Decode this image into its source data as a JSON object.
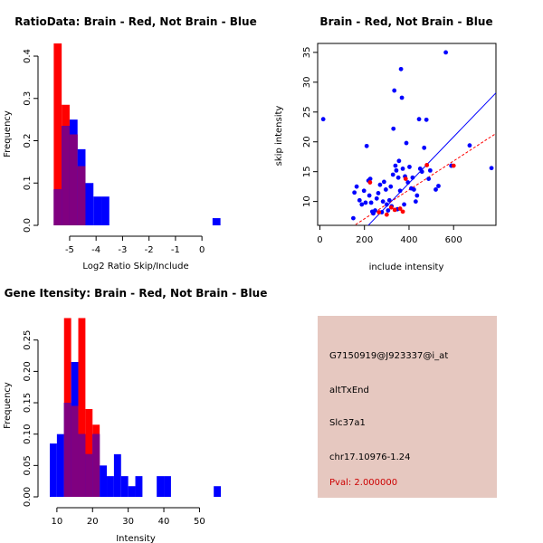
{
  "colors": {
    "red": "#ff0000",
    "blue": "#0000ff",
    "overlap": "#800080",
    "info_bg": "#e6c8c0",
    "pval": "#cc0000"
  },
  "chart_data": [
    {
      "id": "ratio",
      "type": "bar",
      "title": "RatioData: Brain - Red, Not Brain - Blue",
      "xlabel": "Log2 Ratio Skip/Include",
      "ylabel": "Frequency",
      "xlim": [
        -5.75,
        0.85
      ],
      "ylim": [
        0,
        0.43
      ],
      "xticks": [
        -5,
        -4,
        -3,
        -2,
        -1,
        0
      ],
      "xtick_labels": [
        "-5",
        "-4",
        "-3",
        "-2",
        "-1",
        "0"
      ],
      "yticks": [
        0.0,
        0.1,
        0.2,
        0.3,
        0.4
      ],
      "ytick_labels": [
        "0.0",
        "0.1",
        "0.2",
        "0.3",
        "0.4"
      ],
      "bin_edges": [
        -5.6,
        -5.3,
        -5.0,
        -4.7,
        -4.4,
        -4.1,
        -3.8,
        -3.5,
        0.4,
        0.7
      ],
      "series": [
        {
          "name": "Brain",
          "color": "red",
          "values": [
            0.43,
            0.285,
            0.215,
            0.14,
            0,
            0,
            0,
            0,
            0
          ]
        },
        {
          "name": "Not Brain",
          "color": "blue",
          "values": [
            0.085,
            0.235,
            0.25,
            0.18,
            0.1,
            0.068,
            0.068,
            0,
            0.017
          ]
        }
      ]
    },
    {
      "id": "scatter",
      "type": "scatter",
      "title": "Brain - Red, Not Brain - Blue",
      "xlabel": "include intensity",
      "ylabel": "skip intensity",
      "xlim": [
        -10,
        790
      ],
      "ylim": [
        6,
        36.5
      ],
      "xticks": [
        0,
        200,
        400,
        600
      ],
      "xtick_labels": [
        "0",
        "200",
        "400",
        "600"
      ],
      "yticks": [
        10,
        15,
        20,
        25,
        30,
        35
      ],
      "ytick_labels": [
        "10",
        "15",
        "20",
        "25",
        "30",
        "35"
      ],
      "series": [
        {
          "name": "Not Brain",
          "color": "blue",
          "points": [
            [
              15,
              23.8
            ],
            [
              150,
              7.2
            ],
            [
              155,
              11.5
            ],
            [
              165,
              12.5
            ],
            [
              178,
              10.2
            ],
            [
              188,
              9.5
            ],
            [
              198,
              11.8
            ],
            [
              205,
              9.8
            ],
            [
              210,
              19.3
            ],
            [
              218,
              13.5
            ],
            [
              222,
              11
            ],
            [
              226,
              13.8
            ],
            [
              230,
              9.8
            ],
            [
              235,
              8.3
            ],
            [
              240,
              8
            ],
            [
              248,
              8.5
            ],
            [
              255,
              10.5
            ],
            [
              262,
              11.4
            ],
            [
              270,
              12.8
            ],
            [
              278,
              8.2
            ],
            [
              283,
              10
            ],
            [
              288,
              13.3
            ],
            [
              296,
              12
            ],
            [
              300,
              9.5
            ],
            [
              306,
              8.5
            ],
            [
              312,
              10.2
            ],
            [
              318,
              12.5
            ],
            [
              322,
              9.2
            ],
            [
              328,
              14.5
            ],
            [
              330,
              22.2
            ],
            [
              334,
              28.6
            ],
            [
              339,
              16
            ],
            [
              343,
              15.2
            ],
            [
              348,
              8.7
            ],
            [
              352,
              14
            ],
            [
              355,
              16.8
            ],
            [
              360,
              11.8
            ],
            [
              364,
              32.2
            ],
            [
              368,
              27.4
            ],
            [
              372,
              15.5
            ],
            [
              378,
              9.5
            ],
            [
              382,
              14.2
            ],
            [
              388,
              19.8
            ],
            [
              395,
              13.2
            ],
            [
              402,
              15.8
            ],
            [
              410,
              12.2
            ],
            [
              416,
              14
            ],
            [
              422,
              12
            ],
            [
              430,
              10
            ],
            [
              436,
              11
            ],
            [
              445,
              23.8
            ],
            [
              450,
              15.5
            ],
            [
              458,
              15
            ],
            [
              468,
              19
            ],
            [
              478,
              23.7
            ],
            [
              488,
              13.8
            ],
            [
              495,
              15.2
            ],
            [
              520,
              12
            ],
            [
              532,
              12.6
            ],
            [
              565,
              35
            ],
            [
              590,
              16
            ],
            [
              590,
              16
            ],
            [
              672,
              19.4
            ],
            [
              770,
              15.6
            ]
          ]
        },
        {
          "name": "Brain",
          "color": "red",
          "points": [
            [
              225,
              13.2
            ],
            [
              265,
              8.2
            ],
            [
              300,
              7.8
            ],
            [
              320,
              9
            ],
            [
              336,
              8.6
            ],
            [
              360,
              8.8
            ],
            [
              372,
              8.3
            ],
            [
              385,
              13.8
            ],
            [
              480,
              16.1
            ],
            [
              600,
              16
            ]
          ]
        }
      ],
      "fit_lines": [
        {
          "name": "Not Brain fit",
          "color": "blue",
          "x": [
            -10,
            790
          ],
          "y": [
            -2.8,
            28.2
          ],
          "dashed": false
        },
        {
          "name": "Brain fit",
          "color": "red",
          "x": [
            -10,
            790
          ],
          "y": [
            2.0,
            21.4
          ],
          "dashed": true
        }
      ]
    },
    {
      "id": "intensity",
      "type": "bar",
      "title": "Gene Itensity: Brain - Red, Not Brain - Blue",
      "xlabel": "Intensity",
      "ylabel": "Frequency",
      "xlim": [
        8,
        57
      ],
      "ylim": [
        0,
        0.29
      ],
      "xticks": [
        10,
        20,
        30,
        40,
        50
      ],
      "xtick_labels": [
        "10",
        "20",
        "30",
        "40",
        "50"
      ],
      "yticks": [
        0.0,
        0.05,
        0.1,
        0.15,
        0.2,
        0.25
      ],
      "ytick_labels": [
        "0.00",
        "0.05",
        "0.10",
        "0.15",
        "0.20",
        "0.25"
      ],
      "bin_edges": [
        8,
        10,
        12,
        14,
        16,
        18,
        20,
        22,
        24,
        26,
        28,
        30,
        32,
        34,
        36,
        38,
        40,
        42,
        44,
        46,
        48,
        50,
        52,
        54,
        56
      ],
      "series": [
        {
          "name": "Brain",
          "color": "red",
          "values": [
            0,
            0,
            0.285,
            0.145,
            0.285,
            0.14,
            0.115,
            0,
            0,
            0,
            0,
            0,
            0,
            0,
            0,
            0,
            0,
            0,
            0,
            0,
            0,
            0,
            0,
            0
          ]
        },
        {
          "name": "Not Brain",
          "color": "blue",
          "values": [
            0.085,
            0.1,
            0.15,
            0.215,
            0.1,
            0.068,
            0.1,
            0.05,
            0.033,
            0.068,
            0.033,
            0.017,
            0.033,
            0,
            0,
            0.033,
            0.033,
            0,
            0,
            0,
            0,
            0,
            0,
            0.017
          ]
        }
      ]
    }
  ],
  "info": {
    "probe": "G7150919@J923337@i_at",
    "event": "altTxEnd",
    "gene": "Slc37a1",
    "location": "chr17.10976-1.24",
    "pval": "Pval: 2.000000"
  }
}
